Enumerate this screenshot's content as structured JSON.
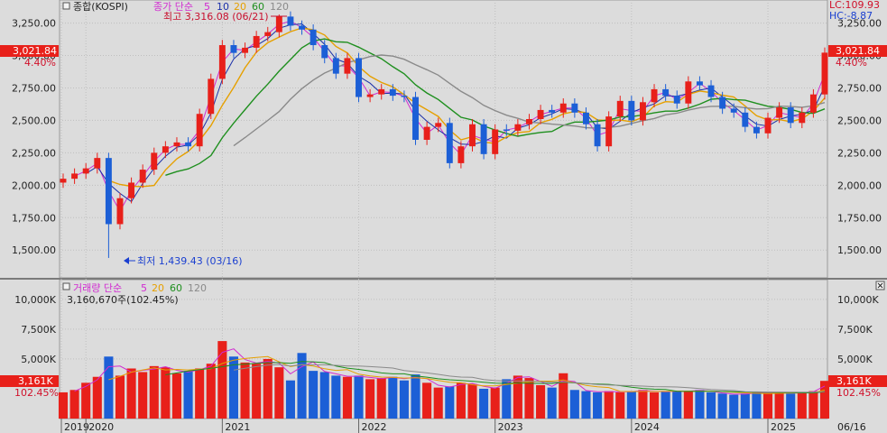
{
  "colors": {
    "up": "#e8201a",
    "down": "#1c5fd6",
    "ma5": "#d12bd1",
    "ma10": "#1a2fa8",
    "ma20": "#e6a000",
    "ma60": "#1e8f1e",
    "ma120": "#8a8a8a",
    "accent": "#e8201a"
  },
  "price_panel": {
    "box_icon": "square-icon",
    "name": "종합(KOSPI)",
    "legend": {
      "label": "종가 단순",
      "p5": "5",
      "p10": "10",
      "p20": "20",
      "p60": "60",
      "p120": "120"
    },
    "high_note": "최고 3,316.08 (06/21)",
    "low_note": "최저 1,439.43 (03/16)",
    "lc": "LC:109.93",
    "hc": "HC:-8.87",
    "current_value": "3,021.84",
    "current_pct": "4.40%"
  },
  "volume_panel": {
    "box_icon": "square-icon",
    "legend": {
      "label": "거래량 단순",
      "p5": "5",
      "p20": "20",
      "p60": "60",
      "p120": "120"
    },
    "volume_value": "3,160,670주(102.45%)",
    "current_value": "3,161K",
    "current_pct": "102.45%",
    "close_icon": "close-icon"
  },
  "x_axis": {
    "labels": [
      "2019",
      "2020",
      "2021",
      "2022",
      "2023",
      "2024",
      "2025"
    ],
    "end_label": "06/16"
  },
  "chart_data": [
    {
      "type": "candlestick",
      "title": "종합(KOSPI)",
      "ylim": [
        1300,
        3400
      ],
      "yticks": [
        "3,250.00",
        "3,000.00",
        "2,750.00",
        "2,500.00",
        "2,250.00",
        "2,000.00",
        "1,750.00",
        "1,500.00"
      ],
      "ytick_values": [
        3250,
        3000,
        2750,
        2500,
        2250,
        2000,
        1750,
        1500
      ],
      "x_dates": [
        "2019-11",
        "2019-12",
        "2020-01",
        "2020-02",
        "2020-03",
        "2020-04",
        "2020-05",
        "2020-06",
        "2020-07",
        "2020-08",
        "2020-09",
        "2020-10",
        "2020-11",
        "2020-12",
        "2021-01",
        "2021-02",
        "2021-03",
        "2021-04",
        "2021-05",
        "2021-06",
        "2021-07",
        "2021-08",
        "2021-09",
        "2021-10",
        "2021-11",
        "2021-12",
        "2022-01",
        "2022-02",
        "2022-03",
        "2022-04",
        "2022-05",
        "2022-06",
        "2022-07",
        "2022-08",
        "2022-09",
        "2022-10",
        "2022-11",
        "2022-12",
        "2023-01",
        "2023-02",
        "2023-03",
        "2023-04",
        "2023-05",
        "2023-06",
        "2023-07",
        "2023-08",
        "2023-09",
        "2023-10",
        "2023-11",
        "2023-12",
        "2024-01",
        "2024-02",
        "2024-03",
        "2024-04",
        "2024-05",
        "2024-06",
        "2024-07",
        "2024-08",
        "2024-09",
        "2024-10",
        "2024-11",
        "2024-12",
        "2025-01",
        "2025-02",
        "2025-03",
        "2025-04",
        "2025-05",
        "2025-06"
      ],
      "close_values": [
        2050,
        2090,
        2130,
        2210,
        1700,
        1900,
        2020,
        2120,
        2250,
        2300,
        2330,
        2300,
        2550,
        2820,
        3080,
        3020,
        3060,
        3150,
        3180,
        3300,
        3230,
        3200,
        3080,
        2980,
        2860,
        2980,
        2680,
        2700,
        2740,
        2690,
        2680,
        2350,
        2450,
        2480,
        2170,
        2300,
        2470,
        2240,
        2430,
        2420,
        2470,
        2510,
        2580,
        2560,
        2630,
        2560,
        2470,
        2300,
        2530,
        2650,
        2500,
        2640,
        2740,
        2690,
        2630,
        2800,
        2770,
        2680,
        2590,
        2560,
        2450,
        2400,
        2520,
        2600,
        2480,
        2560,
        2700,
        3021.84
      ],
      "high_point": {
        "value": 3316.08,
        "label": "최고 3,316.08 (06/21)"
      },
      "low_point": {
        "value": 1439.43,
        "label": "최저 1,439.43 (03/16)"
      },
      "last_value": 3021.84,
      "last_change_pct": 4.4
    },
    {
      "type": "bar",
      "title": "거래량",
      "ylim": [
        0,
        11500
      ],
      "yticks": [
        "10,000K",
        "7,500K",
        "5,000K"
      ],
      "ytick_values": [
        10000,
        7500,
        5000
      ],
      "values_k": [
        2200,
        2400,
        3000,
        3500,
        5200,
        3600,
        4200,
        3900,
        4400,
        4300,
        3800,
        4000,
        4200,
        4600,
        6500,
        5200,
        4700,
        4600,
        5000,
        4300,
        3200,
        5500,
        4000,
        3900,
        3600,
        3500,
        3600,
        3300,
        3400,
        3500,
        3200,
        3700,
        3000,
        2600,
        2700,
        3000,
        2900,
        2500,
        2600,
        3300,
        3600,
        3400,
        2800,
        2600,
        3800,
        2400,
        2300,
        2200,
        2300,
        2200,
        2300,
        2400,
        2200,
        2300,
        2300,
        2300,
        2400,
        2200,
        2100,
        2000,
        2100,
        2200,
        2100,
        2200,
        2100,
        2200,
        2300,
        3161
      ],
      "last_value_k": 3161,
      "last_pct": 102.45
    }
  ]
}
